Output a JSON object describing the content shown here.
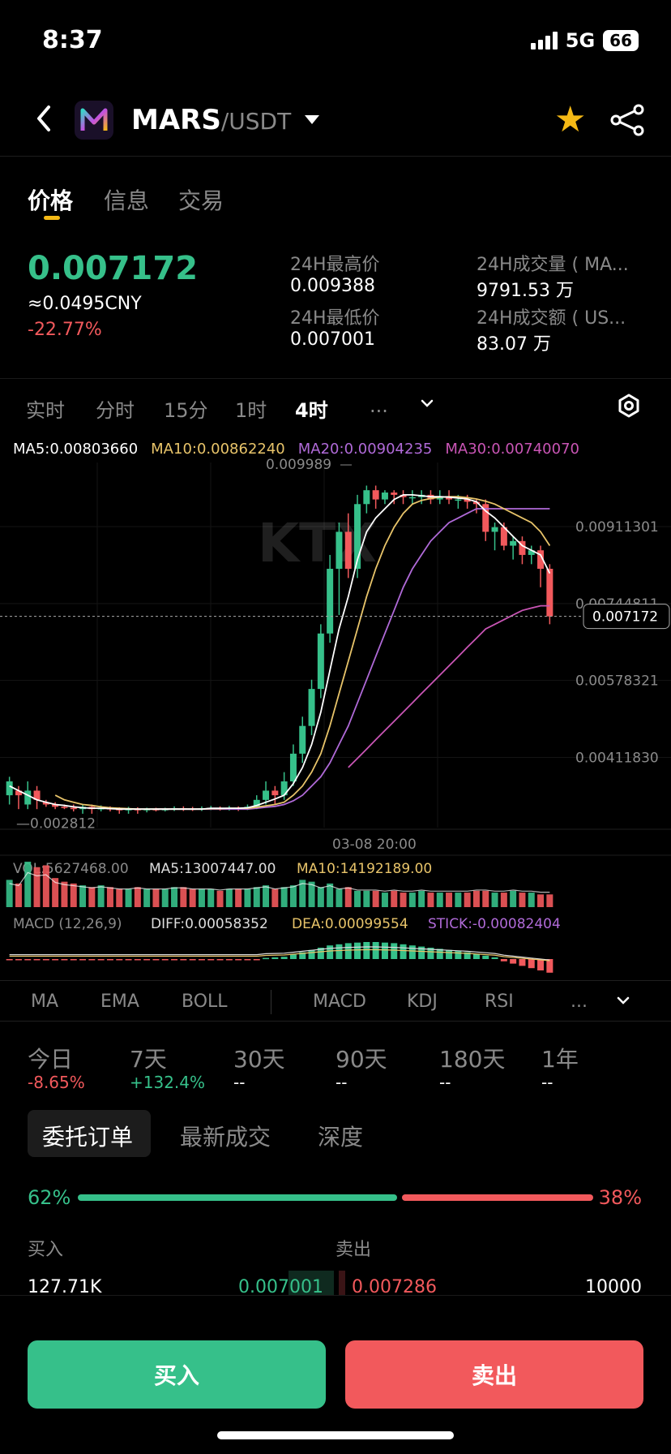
{
  "status": {
    "time": "8:37",
    "network": "5G",
    "battery": "66"
  },
  "header": {
    "base": "MARS",
    "quote": "/USDT"
  },
  "tabs": [
    "价格",
    "信息",
    "交易"
  ],
  "price": {
    "last": "0.007172",
    "cny": "≈0.0495CNY",
    "change": "-22.77%",
    "high_label": "24H最高价",
    "high": "0.009388",
    "low_label": "24H最低价",
    "low": "0.007001",
    "vol_label": "24H成交量 ( MA...",
    "vol": "9791.53 万",
    "amt_label": "24H成交额 ( US...",
    "amt": "83.07 万"
  },
  "timeframes": [
    "实时",
    "分时",
    "15分",
    "1时",
    "4时",
    "..."
  ],
  "ma_legend": {
    "ma5": "MA5:0.00803660",
    "ma10": "MA10:0.00862240",
    "ma20": "MA20:0.00904235",
    "ma30": "MA30:0.00740070"
  },
  "colors": {
    "up": "#36c08a",
    "down": "#f2595c",
    "ma5": "#ffffff",
    "ma10": "#e8c46a",
    "ma20": "#b06ad8",
    "ma30": "#c955b5"
  },
  "chart_data": {
    "type": "candlestick",
    "ylim": [
      0.0026,
      0.0105
    ],
    "y_ticks": [
      "0.00911301",
      "0.00744811",
      "0.00578321",
      "0.00411830"
    ],
    "y_tick_values": [
      0.00911301,
      0.00744811,
      0.00578321,
      0.0041183
    ],
    "current_price": "0.007172",
    "high_marker": "0.009989",
    "low_marker": "0.002812",
    "x_label": "03-08 20:00",
    "candles": [
      [
        0.0033,
        0.0036,
        0.0031,
        0.0037
      ],
      [
        0.0034,
        0.0033,
        0.003,
        0.0035
      ],
      [
        0.0031,
        0.0034,
        0.003,
        0.0036
      ],
      [
        0.0034,
        0.0032,
        0.003,
        0.0035
      ],
      [
        0.00315,
        0.0031,
        0.00305,
        0.0032
      ],
      [
        0.0031,
        0.00305,
        0.003,
        0.00315
      ],
      [
        0.00305,
        0.00303,
        0.003,
        0.0031
      ],
      [
        0.00303,
        0.003,
        0.00295,
        0.0031
      ],
      [
        0.003,
        0.00305,
        0.0029,
        0.0031
      ],
      [
        0.00305,
        0.003,
        0.0029,
        0.0031
      ],
      [
        0.003,
        0.00302,
        0.00295,
        0.00308
      ],
      [
        0.00302,
        0.003,
        0.00295,
        0.00306
      ],
      [
        0.003,
        0.00298,
        0.0029,
        0.00304
      ],
      [
        0.00298,
        0.003,
        0.0029,
        0.00305
      ],
      [
        0.003,
        0.00298,
        0.0029,
        0.00304
      ],
      [
        0.00298,
        0.003,
        0.00293,
        0.00303
      ],
      [
        0.003,
        0.00299,
        0.00295,
        0.00303
      ],
      [
        0.00299,
        0.003,
        0.00295,
        0.00303
      ],
      [
        0.003,
        0.00302,
        0.00296,
        0.00306
      ],
      [
        0.00302,
        0.00301,
        0.00296,
        0.00306
      ],
      [
        0.00301,
        0.003,
        0.00296,
        0.00305
      ],
      [
        0.003,
        0.00302,
        0.00296,
        0.00306
      ],
      [
        0.00302,
        0.00303,
        0.00298,
        0.00307
      ],
      [
        0.00303,
        0.00301,
        0.00297,
        0.00306
      ],
      [
        0.00301,
        0.00303,
        0.00297,
        0.00307
      ],
      [
        0.00303,
        0.003,
        0.00296,
        0.00306
      ],
      [
        0.003,
        0.00305,
        0.00298,
        0.0031
      ],
      [
        0.00305,
        0.0032,
        0.003,
        0.0033
      ],
      [
        0.0032,
        0.0034,
        0.0031,
        0.0036
      ],
      [
        0.0034,
        0.0033,
        0.0031,
        0.0035
      ],
      [
        0.0033,
        0.0036,
        0.0032,
        0.0038
      ],
      [
        0.0036,
        0.0042,
        0.0035,
        0.0044
      ],
      [
        0.0042,
        0.0048,
        0.004,
        0.005
      ],
      [
        0.0048,
        0.0056,
        0.0046,
        0.0058
      ],
      [
        0.0056,
        0.0068,
        0.0054,
        0.007
      ],
      [
        0.0068,
        0.0082,
        0.0066,
        0.0085
      ],
      [
        0.0082,
        0.009,
        0.0072,
        0.0092
      ],
      [
        0.009,
        0.0082,
        0.008,
        0.0094
      ],
      [
        0.0082,
        0.0096,
        0.008,
        0.0098
      ],
      [
        0.0096,
        0.0099,
        0.0094,
        0.01
      ],
      [
        0.0099,
        0.0097,
        0.0095,
        0.01
      ],
      [
        0.0097,
        0.00985,
        0.0096,
        0.0099
      ],
      [
        0.00985,
        0.0098,
        0.0096,
        0.0099
      ],
      [
        0.0098,
        0.00975,
        0.0096,
        0.0099
      ],
      [
        0.00975,
        0.00975,
        0.0096,
        0.0099
      ],
      [
        0.00975,
        0.0098,
        0.0096,
        0.0099
      ],
      [
        0.0098,
        0.0097,
        0.0096,
        0.0099
      ],
      [
        0.0097,
        0.00975,
        0.0096,
        0.0099
      ],
      [
        0.00975,
        0.0097,
        0.0096,
        0.0099
      ],
      [
        0.0097,
        0.0097,
        0.0095,
        0.0098
      ],
      [
        0.0097,
        0.00965,
        0.0095,
        0.0098
      ],
      [
        0.00965,
        0.0096,
        0.0094,
        0.0097
      ],
      [
        0.0096,
        0.009,
        0.0088,
        0.0097
      ],
      [
        0.009,
        0.0091,
        0.0086,
        0.0092
      ],
      [
        0.0091,
        0.0087,
        0.0086,
        0.0092
      ],
      [
        0.0087,
        0.0088,
        0.0084,
        0.0089
      ],
      [
        0.0088,
        0.0085,
        0.0083,
        0.0089
      ],
      [
        0.0085,
        0.0086,
        0.0083,
        0.0087
      ],
      [
        0.0086,
        0.0082,
        0.0078,
        0.0087
      ],
      [
        0.0082,
        0.00717,
        0.007,
        0.0083
      ]
    ],
    "ma5": [
      0.0035,
      0.0034,
      0.0033,
      0.0032,
      0.00315,
      0.0031,
      0.00308,
      0.00305,
      0.00303,
      0.00302,
      0.00302,
      0.00301,
      0.003,
      0.003,
      0.003,
      0.003,
      0.003,
      0.003,
      0.003,
      0.003,
      0.003,
      0.003,
      0.00302,
      0.00302,
      0.00302,
      0.00302,
      0.00303,
      0.00308,
      0.00315,
      0.00322,
      0.0033,
      0.00355,
      0.0039,
      0.0044,
      0.0051,
      0.006,
      0.0069,
      0.0076,
      0.0084,
      0.009,
      0.0093,
      0.0095,
      0.0097,
      0.0098,
      0.0098,
      0.00978,
      0.00976,
      0.00976,
      0.00975,
      0.00973,
      0.00971,
      0.00965,
      0.00945,
      0.0093,
      0.0091,
      0.0089,
      0.0087,
      0.0086,
      0.0085,
      0.0081
    ],
    "ma10": [
      null,
      null,
      null,
      null,
      null,
      0.0033,
      0.0032,
      0.00315,
      0.0031,
      0.00308,
      0.00305,
      0.00303,
      0.00302,
      0.00301,
      0.003,
      0.003,
      0.003,
      0.003,
      0.003,
      0.003,
      0.003,
      0.003,
      0.00301,
      0.00301,
      0.00302,
      0.00302,
      0.00302,
      0.00304,
      0.00307,
      0.0031,
      0.00315,
      0.0033,
      0.0035,
      0.0038,
      0.0042,
      0.0048,
      0.0055,
      0.0062,
      0.0069,
      0.0076,
      0.0082,
      0.0087,
      0.0091,
      0.0094,
      0.0096,
      0.00968,
      0.00972,
      0.00975,
      0.00976,
      0.00976,
      0.00974,
      0.00971,
      0.00966,
      0.0096,
      0.0095,
      0.0094,
      0.0093,
      0.0092,
      0.009,
      0.0087
    ],
    "ma20": [
      null,
      null,
      null,
      null,
      null,
      null,
      null,
      null,
      null,
      null,
      null,
      null,
      null,
      null,
      null,
      null,
      0.003,
      0.003,
      0.003,
      0.003,
      0.003,
      0.003,
      0.003,
      0.003,
      0.003,
      0.003,
      0.003,
      0.00302,
      0.00304,
      0.00306,
      0.0031,
      0.00318,
      0.0033,
      0.0035,
      0.0037,
      0.004,
      0.0044,
      0.0048,
      0.0053,
      0.0058,
      0.0063,
      0.0068,
      0.0073,
      0.0078,
      0.0082,
      0.0085,
      0.0088,
      0.009,
      0.0092,
      0.0093,
      0.0094,
      0.0095,
      0.0095,
      0.0095,
      0.0095,
      0.0095,
      0.0095,
      0.0095,
      0.0095,
      0.0095
    ],
    "ma30": [
      null,
      null,
      null,
      null,
      null,
      null,
      null,
      null,
      null,
      null,
      null,
      null,
      null,
      null,
      null,
      null,
      null,
      null,
      null,
      null,
      null,
      null,
      null,
      null,
      null,
      null,
      null,
      null,
      null,
      null,
      null,
      null,
      null,
      null,
      null,
      null,
      null,
      0.0039,
      0.0041,
      0.0043,
      0.0045,
      0.0047,
      0.0049,
      0.0051,
      0.0053,
      0.0055,
      0.0057,
      0.0059,
      0.0061,
      0.0063,
      0.0065,
      0.0067,
      0.0069,
      0.007,
      0.0071,
      0.0072,
      0.0073,
      0.00735,
      0.0074,
      0.0074
    ]
  },
  "volume": {
    "label": "VOL:5627468.00",
    "ma5": "MA5:13007447.00",
    "ma10": "MA10:14192189.00",
    "values": [
      30,
      26,
      50,
      44,
      46,
      32,
      28,
      26,
      24,
      22,
      24,
      22,
      20,
      20,
      22,
      20,
      20,
      20,
      22,
      22,
      20,
      20,
      20,
      18,
      20,
      20,
      20,
      22,
      24,
      20,
      22,
      24,
      30,
      28,
      22,
      26,
      20,
      22,
      18,
      18,
      18,
      16,
      18,
      16,
      16,
      18,
      16,
      16,
      16,
      16,
      16,
      18,
      18,
      16,
      16,
      18,
      16,
      16,
      14,
      14
    ]
  },
  "macd": {
    "label": "MACD (12,26,9)",
    "diff": "DIFF:0.00058352",
    "dea": "DEA:0.00099554",
    "stick": "STICK:-0.00082404",
    "values": [
      -0.2,
      -0.2,
      -0.2,
      -0.2,
      -0.2,
      -0.2,
      -0.2,
      -0.2,
      -0.2,
      -0.2,
      -0.2,
      -0.2,
      -0.2,
      -0.2,
      -0.2,
      -0.2,
      -0.2,
      -0.2,
      -0.2,
      -0.2,
      -0.2,
      -0.2,
      -0.2,
      -0.2,
      -0.2,
      -0.2,
      -0.2,
      -0.2,
      0.2,
      0.3,
      0.4,
      0.8,
      1.2,
      1.6,
      2.0,
      2.4,
      2.6,
      2.8,
      2.9,
      3.0,
      3.0,
      2.9,
      2.8,
      2.6,
      2.4,
      2.2,
      2.0,
      1.8,
      1.6,
      1.4,
      1.2,
      0.9,
      0.6,
      0.3,
      -0.4,
      -0.8,
      -1.2,
      -1.6,
      -2.0,
      -2.4
    ]
  },
  "indicators": [
    "MA",
    "EMA",
    "BOLL",
    "MACD",
    "KDJ",
    "RSI",
    "..."
  ],
  "periods": [
    {
      "label": "今日",
      "value": "-8.65%"
    },
    {
      "label": "7天",
      "value": "+132.4%"
    },
    {
      "label": "30天",
      "value": "--"
    },
    {
      "label": "90天",
      "value": "--"
    },
    {
      "label": "180天",
      "value": "--"
    },
    {
      "label": "1年",
      "value": "--"
    }
  ],
  "orderbook": {
    "tabs": [
      "委托订单",
      "最新成交",
      "深度"
    ],
    "buy_ratio": "62%",
    "sell_ratio": "38%",
    "buy_label": "买入",
    "sell_label": "卖出",
    "row": {
      "buy_qty": "127.71K",
      "buy_price": "0.007001",
      "sell_price": "0.007286",
      "sell_qty": "10000"
    }
  },
  "actions": {
    "buy": "买入",
    "sell": "卖出"
  }
}
